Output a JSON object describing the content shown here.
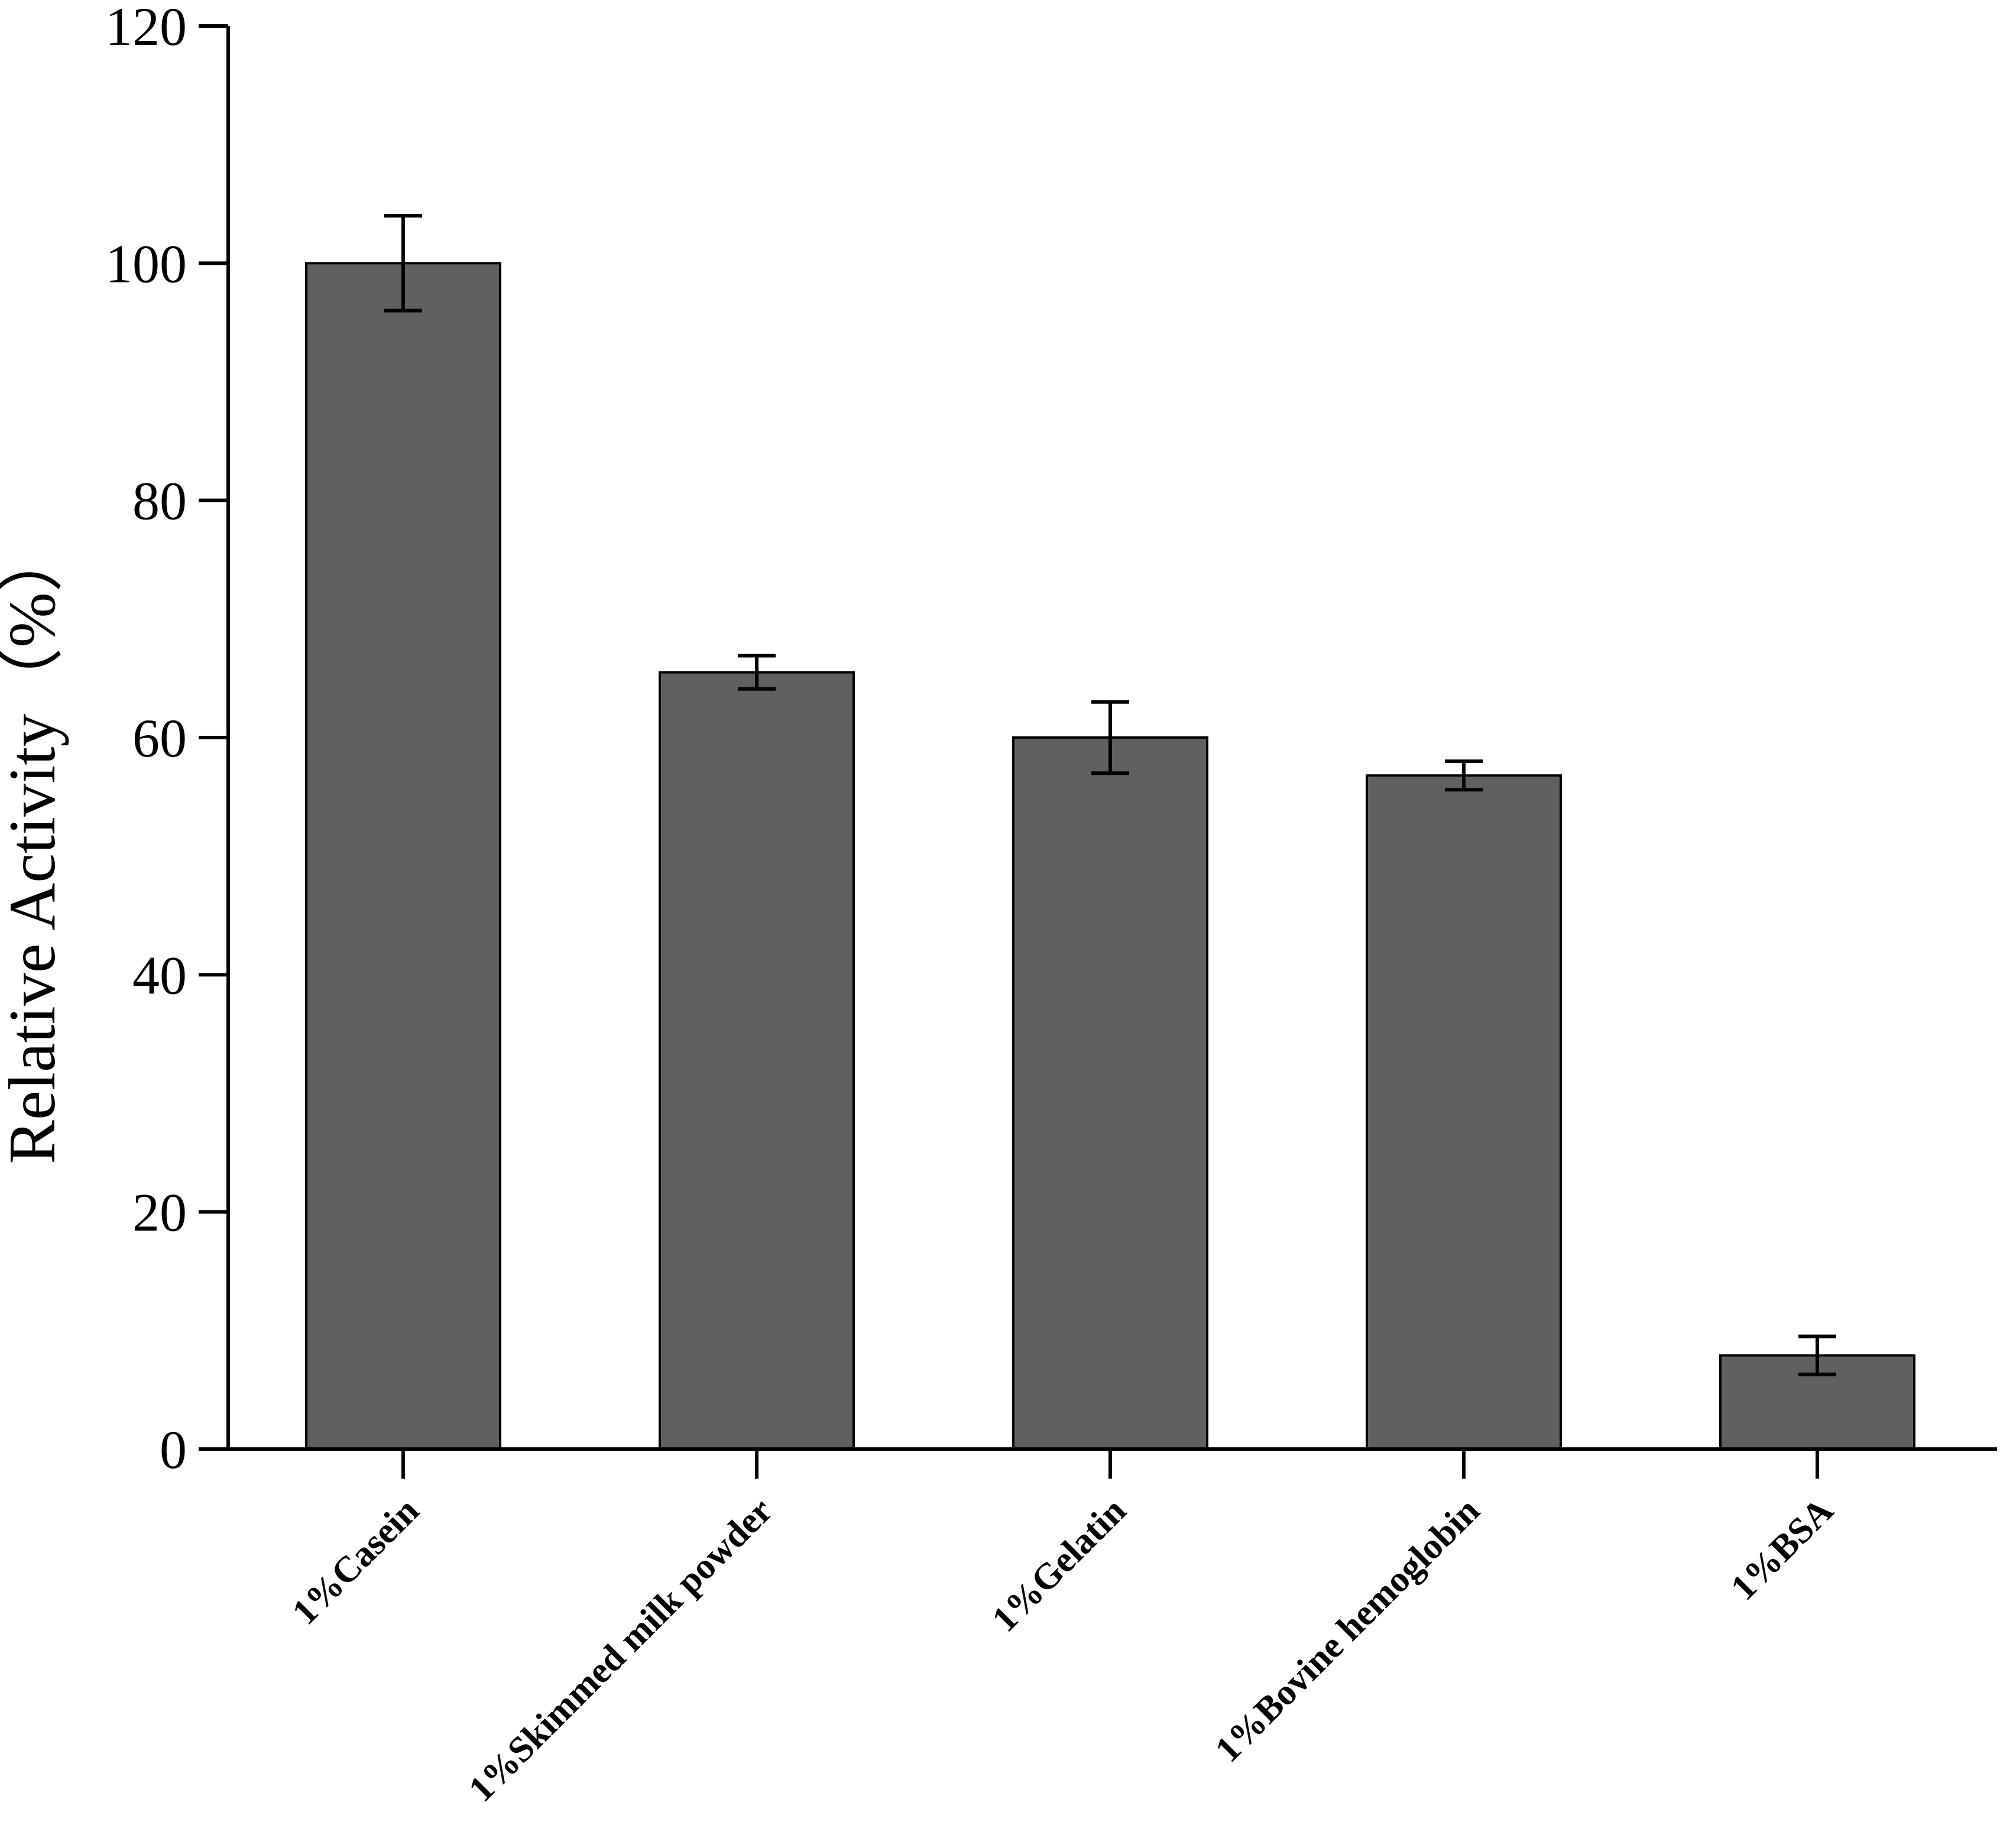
{
  "chart_data": {
    "type": "bar",
    "categories": [
      "1%Casein",
      "1%Skimmed milk powder",
      "1%Gelatin",
      "1%Bovine hemoglobin",
      "1%BSA"
    ],
    "values": [
      100,
      65.5,
      60,
      56.8,
      7.9
    ],
    "errors": [
      4,
      1.4,
      3,
      1.2,
      1.6
    ],
    "title": "",
    "xlabel": "",
    "ylabel": "Relative Activity（%）",
    "ylim": [
      0,
      120
    ],
    "yticks": [
      0,
      20,
      40,
      60,
      80,
      100,
      120
    ],
    "grid": false,
    "legend": "none",
    "bar_color": "#606060",
    "edge_color": "#000000"
  }
}
